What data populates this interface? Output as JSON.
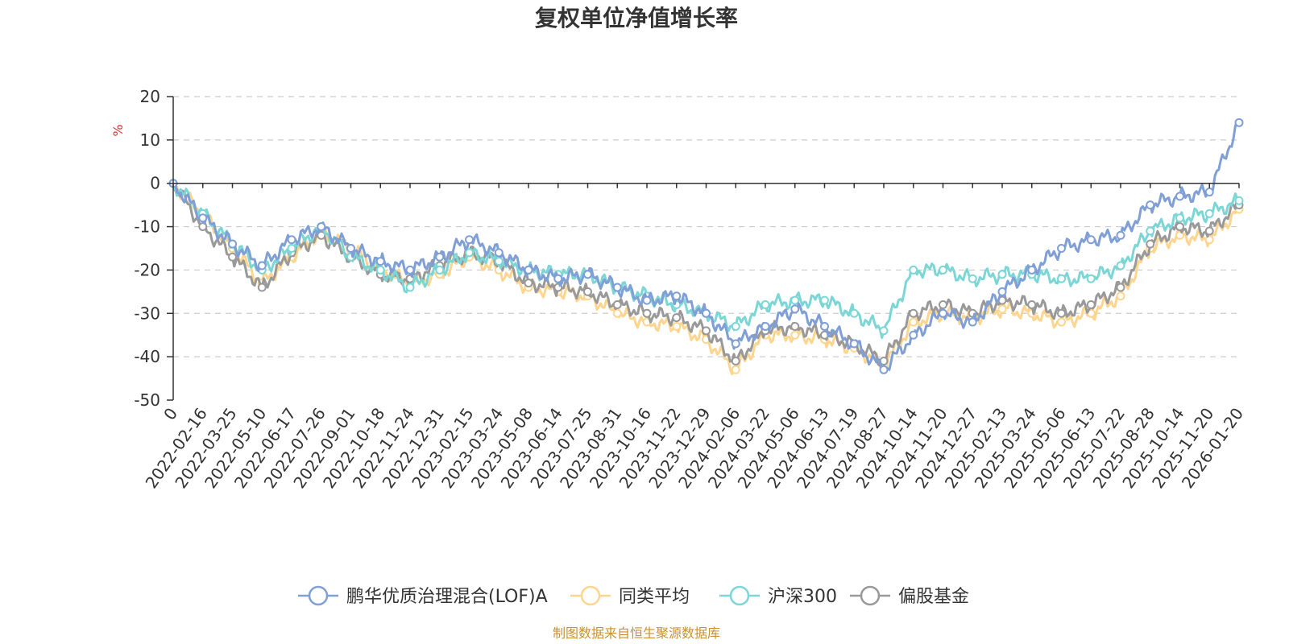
{
  "chart_data": {
    "type": "line",
    "title": "复权单位净值增长率",
    "ylabel": "%",
    "ylim": [
      -50,
      20
    ],
    "yticks": [
      20,
      10,
      0,
      -10,
      -20,
      -30,
      -40,
      -50
    ],
    "categories": [
      "0",
      "2022-02-16",
      "2022-03-25",
      "2022-05-10",
      "2022-06-17",
      "2022-07-26",
      "2022-09-01",
      "2022-10-18",
      "2022-11-24",
      "2022-12-31",
      "2023-02-15",
      "2023-03-24",
      "2023-05-08",
      "2023-06-14",
      "2023-07-25",
      "2023-08-31",
      "2023-10-16",
      "2023-11-22",
      "2023-12-29",
      "2024-02-06",
      "2024-03-22",
      "2024-05-06",
      "2024-06-13",
      "2024-07-19",
      "2024-08-27",
      "2024-10-14",
      "2024-11-20",
      "2024-12-27",
      "2025-02-13",
      "2025-03-24",
      "2025-05-06",
      "2025-06-13",
      "2025-07-22",
      "2025-08-28",
      "2025-10-14",
      "2025-11-20",
      "2026-01-20"
    ],
    "series": [
      {
        "name": "鹏华优质治理混合(LOF)A",
        "color": "#7f9fd6",
        "values": [
          0,
          -8,
          -14,
          -19,
          -13,
          -10,
          -15,
          -18,
          -20,
          -17,
          -13,
          -16,
          -20,
          -22,
          -21,
          -24,
          -27,
          -26,
          -30,
          -37,
          -33,
          -29,
          -33,
          -37,
          -43,
          -35,
          -30,
          -32,
          -25,
          -20,
          -15,
          -13,
          -12,
          -5,
          -3,
          -2,
          14
        ]
      },
      {
        "name": "同类平均",
        "color": "#fdd58f",
        "values": [
          0,
          -7,
          -15,
          -23,
          -17,
          -11,
          -15,
          -20,
          -23,
          -21,
          -17,
          -20,
          -24,
          -25,
          -26,
          -30,
          -32,
          -33,
          -36,
          -43,
          -35,
          -35,
          -36,
          -38,
          -42,
          -32,
          -30,
          -31,
          -29,
          -30,
          -32,
          -30,
          -26,
          -15,
          -12,
          -13,
          -6
        ]
      },
      {
        "name": "沪深300",
        "color": "#7dd6d6",
        "values": [
          0,
          -7,
          -14,
          -20,
          -15,
          -10,
          -17,
          -20,
          -24,
          -20,
          -16,
          -18,
          -20,
          -21,
          -21,
          -24,
          -26,
          -28,
          -30,
          -33,
          -28,
          -27,
          -27,
          -30,
          -34,
          -20,
          -20,
          -22,
          -21,
          -21,
          -22,
          -22,
          -19,
          -11,
          -8,
          -7,
          -4
        ]
      },
      {
        "name": "偏股基金",
        "color": "#999999",
        "values": [
          0,
          -10,
          -17,
          -24,
          -16,
          -12,
          -17,
          -21,
          -22,
          -19,
          -16,
          -18,
          -23,
          -24,
          -25,
          -28,
          -30,
          -31,
          -34,
          -41,
          -34,
          -33,
          -35,
          -37,
          -41,
          -30,
          -28,
          -30,
          -27,
          -28,
          -30,
          -28,
          -24,
          -14,
          -10,
          -11,
          -5
        ]
      }
    ]
  },
  "source_note": "制图数据来自恒生聚源数据库"
}
